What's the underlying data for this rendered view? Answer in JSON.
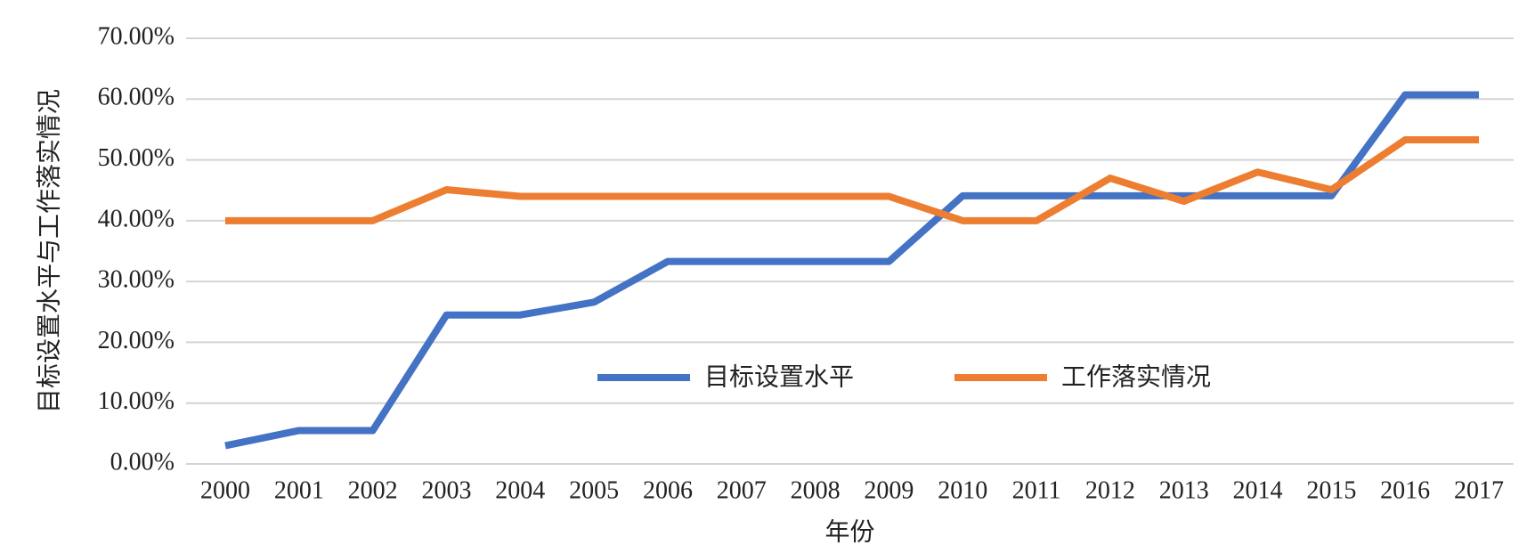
{
  "chart_data": {
    "type": "line",
    "x_label": "年份",
    "y_label": "目标设置水平与工作落实情况",
    "categories": [
      "2000",
      "2001",
      "2002",
      "2003",
      "2004",
      "2005",
      "2006",
      "2007",
      "2008",
      "2009",
      "2010",
      "2011",
      "2012",
      "2013",
      "2014",
      "2015",
      "2016",
      "2017"
    ],
    "series": [
      {
        "name": "目标设置水平",
        "color": "#4472c4",
        "values": [
          3.0,
          5.5,
          5.5,
          24.5,
          24.5,
          26.6,
          33.3,
          33.3,
          33.3,
          33.3,
          44.1,
          44.1,
          44.1,
          44.1,
          44.1,
          44.1,
          60.7,
          60.7
        ]
      },
      {
        "name": "工作落实情况",
        "color": "#ed7d31",
        "values": [
          40,
          40,
          40,
          45.1,
          44,
          44,
          44,
          44,
          44,
          44,
          40,
          40,
          47,
          43.2,
          48,
          45.1,
          53.3,
          53.3
        ]
      }
    ],
    "ylim": [
      0,
      70
    ],
    "yticks": [
      {
        "value": 0,
        "label": "0.00%"
      },
      {
        "value": 10,
        "label": "10.00%"
      },
      {
        "value": 20,
        "label": "20.00%"
      },
      {
        "value": 30,
        "label": "30.00%"
      },
      {
        "value": 40,
        "label": "40.00%"
      },
      {
        "value": 50,
        "label": "50.00%"
      },
      {
        "value": 60,
        "label": "60.00%"
      },
      {
        "value": 70,
        "label": "70.00%"
      }
    ],
    "grid": true
  }
}
